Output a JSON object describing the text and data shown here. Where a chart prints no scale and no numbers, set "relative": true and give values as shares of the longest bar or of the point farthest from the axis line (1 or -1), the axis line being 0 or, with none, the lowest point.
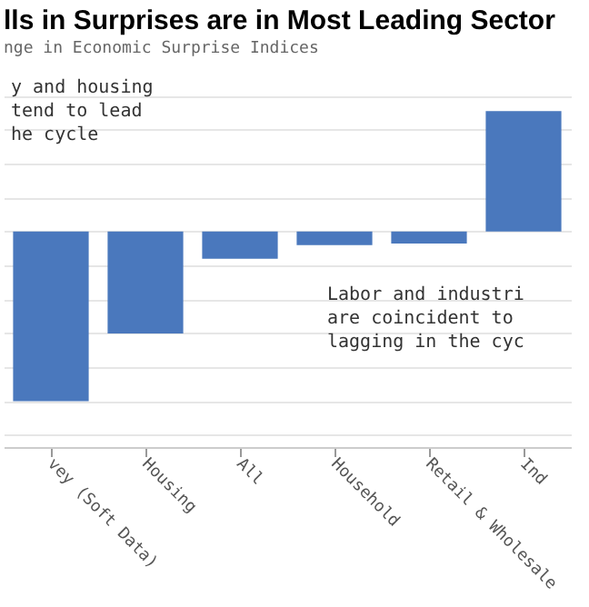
{
  "chart_data": {
    "type": "bar",
    "title": "lls in Surprises are in Most Leading Sector",
    "subtitle": "nge in Economic Surprise Indices",
    "categories": [
      "vey (Soft Data)",
      "Housing",
      "All",
      "Household",
      "Retail & Wholesale",
      "Ind"
    ],
    "values": [
      -1,
      -0.6,
      -0.16,
      -0.08,
      -0.07,
      0.71
    ],
    "color": "#4a78bd",
    "relative": true,
    "grid": "y",
    "annotations": [
      "y and housing\ntend to lead\nhe cycle",
      "Labor and industri\nare coincident to\nlagging in the cyc"
    ]
  }
}
